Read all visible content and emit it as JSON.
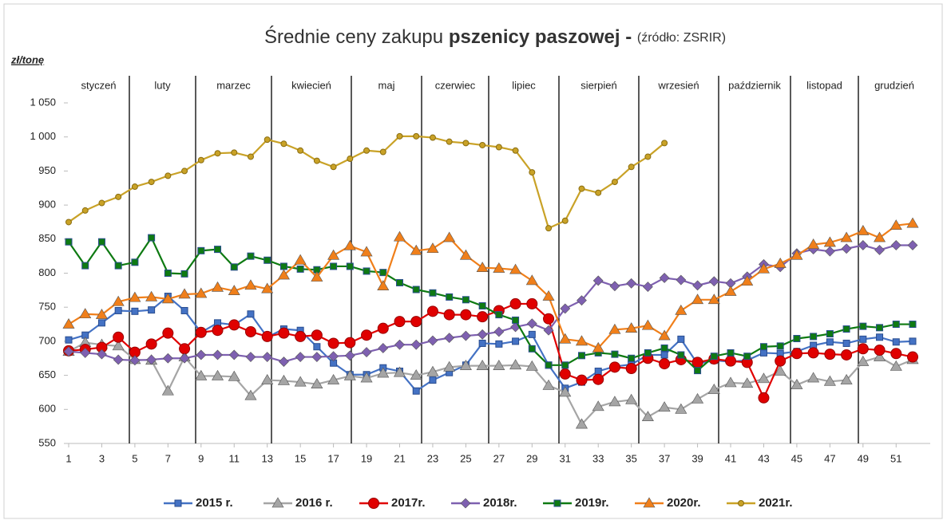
{
  "chart_data": {
    "type": "line",
    "title": [
      "Średnie ceny zakupu",
      "pszenicy paszowej -",
      "(źródło: ZSRIR)"
    ],
    "y_label": "zł/tonę",
    "months": [
      "styczeń",
      "luty",
      "marzec",
      "kwiecień",
      "maj",
      "czerwiec",
      "lipiec",
      "sierpień",
      "wrzesień",
      "październik",
      "listopad",
      "grudzień"
    ],
    "x": [
      1,
      2,
      3,
      4,
      5,
      6,
      7,
      8,
      9,
      10,
      11,
      12,
      13,
      14,
      15,
      16,
      17,
      18,
      19,
      20,
      21,
      22,
      23,
      24,
      25,
      26,
      27,
      28,
      29,
      30,
      31,
      32,
      33,
      34,
      35,
      36,
      37,
      38,
      39,
      40,
      41,
      42,
      43,
      44,
      45,
      46,
      47,
      48,
      49,
      50,
      51,
      52
    ],
    "xlim": [
      1,
      52
    ],
    "xticks": [
      1,
      3,
      5,
      7,
      9,
      11,
      13,
      15,
      17,
      19,
      21,
      23,
      25,
      27,
      29,
      31,
      33,
      35,
      37,
      39,
      41,
      43,
      45,
      47,
      49,
      51
    ],
    "ylim": [
      550,
      1050
    ],
    "yticks": [
      550,
      600,
      650,
      700,
      750,
      800,
      850,
      900,
      950,
      {
        "value": 1000,
        "label": "1 000"
      },
      {
        "value": 1050,
        "label": "1 050"
      }
    ],
    "series": [
      {
        "name": "2015 r.",
        "color": "#4472c4",
        "marker": "square",
        "values": [
          702,
          709,
          727,
          745,
          744,
          746,
          766,
          745,
          713,
          727,
          724,
          740,
          706,
          718,
          716,
          692,
          668,
          651,
          651,
          661,
          656,
          627,
          643,
          654,
          665,
          697,
          696,
          700,
          710,
          665,
          631,
          640,
          656,
          663,
          666,
          680,
          680,
          703,
          667,
          672,
          670,
          672,
          683,
          682,
          685,
          694,
          699,
          697,
          703,
          706,
          699,
          700
        ]
      },
      {
        "name": "2016 r.",
        "color": "#a5a5a5",
        "marker": "triangle",
        "values": [
          685,
          698,
          695,
          693,
          673,
          672,
          627,
          677,
          649,
          649,
          648,
          620,
          643,
          642,
          640,
          637,
          643,
          649,
          646,
          653,
          654,
          650,
          655,
          662,
          664,
          664,
          664,
          665,
          663,
          635,
          625,
          578,
          604,
          611,
          614,
          589,
          603,
          600,
          615,
          629,
          639,
          638,
          645,
          656,
          636,
          646,
          641,
          643,
          670,
          677,
          663,
          673
        ]
      },
      {
        "name": "2017r.",
        "color": "#e00000",
        "marker": "circle",
        "values": [
          686,
          688,
          691,
          706,
          684,
          696,
          712,
          689,
          713,
          716,
          724,
          714,
          707,
          712,
          707,
          709,
          697,
          698,
          709,
          719,
          729,
          729,
          744,
          739,
          739,
          736,
          745,
          755,
          755,
          733,
          652,
          643,
          644,
          662,
          660,
          675,
          667,
          673,
          669,
          674,
          671,
          669,
          617,
          671,
          682,
          683,
          681,
          680,
          689,
          687,
          682,
          677
        ]
      },
      {
        "name": "2018r.",
        "color": "#7e60b0",
        "marker": "diamond",
        "values": [
          685,
          683,
          681,
          673,
          672,
          673,
          675,
          675,
          680,
          680,
          680,
          677,
          677,
          670,
          677,
          677,
          678,
          679,
          684,
          690,
          695,
          695,
          701,
          705,
          708,
          710,
          714,
          721,
          726,
          716,
          748,
          760,
          789,
          781,
          785,
          780,
          793,
          790,
          782,
          788,
          785,
          795,
          813,
          809,
          829,
          835,
          832,
          836,
          841,
          834,
          841,
          841
        ]
      },
      {
        "name": "2019r.",
        "color": "#0e7a12",
        "marker": "square",
        "values": [
          846,
          811,
          846,
          811,
          816,
          852,
          800,
          799,
          833,
          835,
          809,
          825,
          819,
          810,
          806,
          805,
          810,
          810,
          803,
          801,
          786,
          776,
          771,
          765,
          761,
          752,
          739,
          731,
          689,
          665,
          665,
          679,
          683,
          681,
          675,
          683,
          690,
          680,
          657,
          678,
          683,
          678,
          692,
          693,
          704,
          707,
          711,
          718,
          722,
          720,
          725,
          725
        ]
      },
      {
        "name": "2020r.",
        "color": "#f07f1a",
        "marker": "triangle",
        "values": [
          725,
          740,
          739,
          758,
          764,
          765,
          762,
          769,
          770,
          779,
          774,
          782,
          777,
          797,
          819,
          794,
          826,
          840,
          831,
          781,
          853,
          833,
          836,
          852,
          826,
          808,
          807,
          805,
          789,
          766,
          703,
          700,
          690,
          717,
          719,
          723,
          708,
          745,
          761,
          761,
          773,
          788,
          806,
          814,
          826,
          842,
          845,
          852,
          862,
          852,
          870,
          873
        ]
      },
      {
        "name": "2021r.",
        "color": "#c9a227",
        "marker": "dot",
        "values": [
          875,
          892,
          903,
          912,
          927,
          934,
          943,
          950,
          966,
          976,
          977,
          971,
          996,
          990,
          980,
          965,
          956,
          968,
          980,
          978,
          1001,
          1001,
          999,
          993,
          991,
          988,
          985,
          980,
          948,
          866,
          877,
          924,
          918,
          934,
          956,
          971,
          991,
          null,
          null,
          null,
          null,
          null,
          null,
          null,
          null,
          null,
          null,
          null,
          null,
          null,
          null,
          null
        ]
      }
    ]
  }
}
